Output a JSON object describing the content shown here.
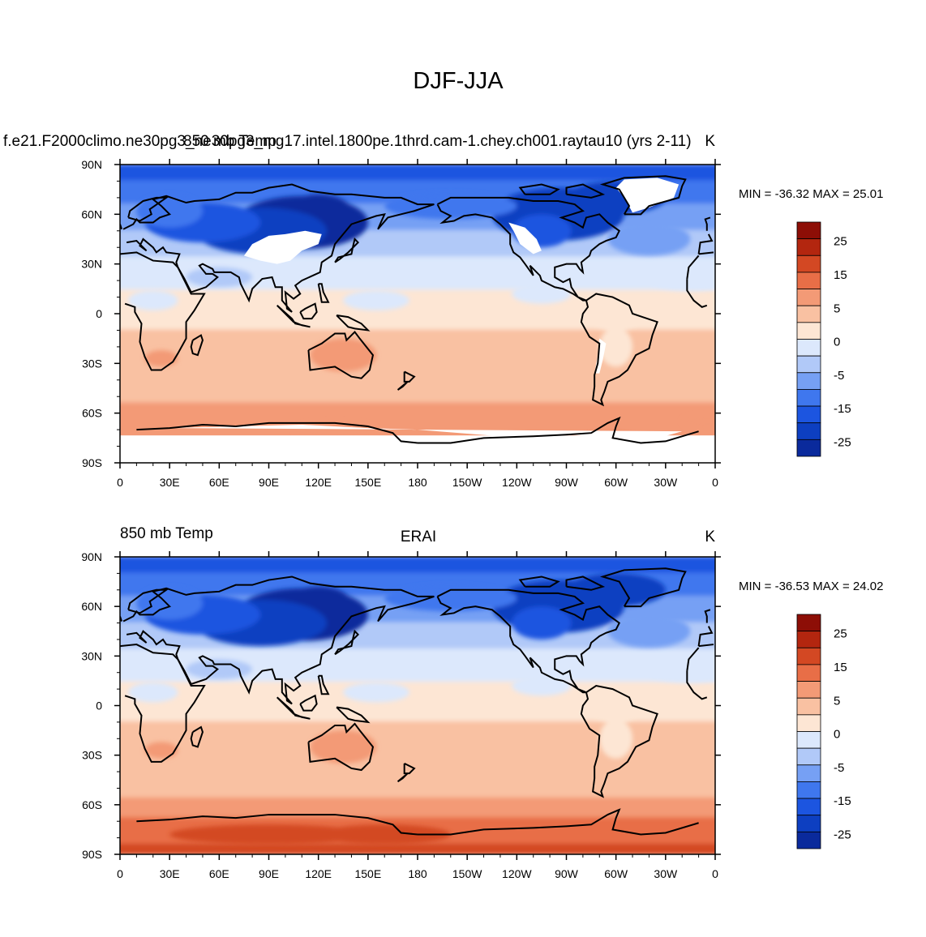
{
  "figure_title": "DJF-JJA",
  "colors": {
    "levels": [
      -30,
      -25,
      -20,
      -15,
      -10,
      -5,
      0,
      5,
      10,
      15,
      20,
      25,
      30
    ],
    "fills": [
      "#08087a",
      "#0a2a9c",
      "#0d3fc1",
      "#1c55e0",
      "#3f77ee",
      "#76a0f4",
      "#b1c9f8",
      "#dce8fc",
      "#fde6d4",
      "#f9c1a2",
      "#f39a76",
      "#e86e47",
      "#d34823",
      "#b3260f",
      "#8d0e06"
    ],
    "land_mask_color": "#ffffff",
    "coastline": "#000000"
  },
  "chart_data": [
    {
      "type": "heatmap",
      "title_left": "f.e21.F2000climo.ne30pg3_ne30pg3_mg17.intel.1800pe.1thrd.cam-1.chey.ch001.raytau10 (yrs 2-11)",
      "title_center": "850 mb Temp",
      "title_right": "K",
      "min_max_text": "MIN = -36.32 MAX =  25.01",
      "x_ticks": [
        "0",
        "30E",
        "60E",
        "90E",
        "120E",
        "150E",
        "180",
        "150W",
        "120W",
        "90W",
        "60W",
        "30W",
        "0"
      ],
      "y_ticks": [
        "90N",
        "60N",
        "30N",
        "0",
        "30S",
        "60S",
        "90S"
      ],
      "xlim": [
        0,
        360
      ],
      "ylim": [
        -90,
        90
      ],
      "colorbar_labels": [
        "25",
        "15",
        "5",
        "0",
        "-5",
        "-15",
        "-25"
      ],
      "masked_regions": [
        "Tibetan Plateau and Mongolia",
        "Greenland",
        "Rocky Mountains",
        "Andes",
        "Antarctic interior"
      ]
    },
    {
      "type": "heatmap",
      "title_left": "850 mb Temp",
      "title_center": "ERAI",
      "title_right": "K",
      "min_max_text": "MIN = -36.53 MAX =  24.02",
      "x_ticks": [
        "0",
        "30E",
        "60E",
        "90E",
        "120E",
        "150E",
        "180",
        "150W",
        "120W",
        "90W",
        "60W",
        "30W",
        "0"
      ],
      "y_ticks": [
        "90N",
        "60N",
        "30N",
        "0",
        "30S",
        "60S",
        "90S"
      ],
      "xlim": [
        0,
        360
      ],
      "ylim": [
        -90,
        90
      ],
      "colorbar_labels": [
        "25",
        "15",
        "5",
        "0",
        "-5",
        "-15",
        "-25"
      ]
    }
  ]
}
